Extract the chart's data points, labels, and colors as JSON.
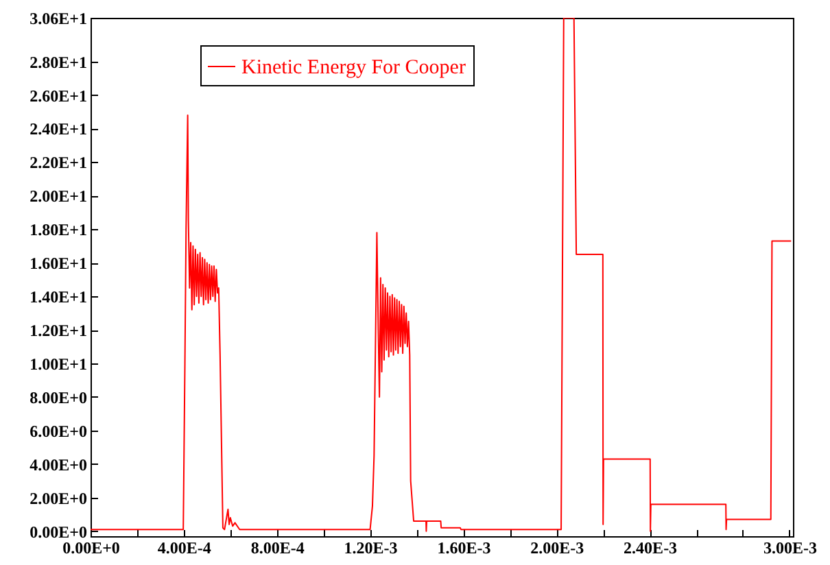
{
  "chart_data": {
    "type": "line",
    "x": [
      0,
      0.0002,
      0.000398,
      0.000405,
      0.00041,
      0.000417,
      0.00042,
      0.000425,
      0.00043,
      0.000435,
      0.00044,
      0.000445,
      0.00045,
      0.000455,
      0.00046,
      0.000465,
      0.00047,
      0.000475,
      0.00048,
      0.000485,
      0.00049,
      0.000495,
      0.0005,
      0.000505,
      0.00051,
      0.000515,
      0.00052,
      0.000525,
      0.00053,
      0.000535,
      0.00054,
      0.000545,
      0.00055,
      0.000556,
      0.000568,
      0.000575,
      0.00059,
      0.000595,
      0.0006,
      0.00061,
      0.00062,
      0.00064,
      0.001,
      0.0012,
      0.00121,
      0.001217,
      0.001229,
      0.001235,
      0.00124,
      0.001245,
      0.00125,
      0.001255,
      0.00126,
      0.001265,
      0.00127,
      0.001275,
      0.00128,
      0.001285,
      0.00129,
      0.001295,
      0.0013,
      0.001305,
      0.00131,
      0.001315,
      0.00132,
      0.001325,
      0.00133,
      0.001335,
      0.00134,
      0.001345,
      0.00135,
      0.001355,
      0.00136,
      0.001365,
      0.00137,
      0.001374,
      0.001387,
      0.001393,
      0.00144,
      0.001441,
      0.001443,
      0.001503,
      0.001505,
      0.001587,
      0.00159,
      0.00202,
      0.002031,
      0.002035,
      0.002075,
      0.002085,
      0.002199,
      0.0022,
      0.002202,
      0.002402,
      0.002403,
      0.002405,
      0.002727,
      0.002728,
      0.00273,
      0.00292,
      0.002925,
      0.003007
    ],
    "series": [
      {
        "name": "Kinetic Energy For Cooper",
        "color": "#ff0000",
        "values": [
          0.1,
          0.1,
          0.1,
          10,
          18,
          24.8,
          18.5,
          14.5,
          17.2,
          13.2,
          17,
          13.5,
          16.8,
          14,
          16.5,
          13.6,
          16.6,
          14,
          16.3,
          13.5,
          16.2,
          13.8,
          16,
          13.6,
          15.9,
          13.8,
          15.8,
          14,
          15.8,
          13.7,
          15.6,
          14.2,
          14.5,
          10.5,
          0.2,
          0.1,
          1.3,
          0.4,
          0.8,
          0.3,
          0.5,
          0.1,
          0.1,
          0.1,
          1.5,
          4.5,
          17.8,
          12,
          8,
          15.1,
          9.5,
          14.7,
          10.2,
          14.5,
          10.8,
          14.2,
          10.4,
          14,
          10.7,
          14.1,
          10.5,
          13.9,
          10.8,
          13.8,
          10.6,
          13.7,
          11,
          13.5,
          10.6,
          13.4,
          11.2,
          13,
          11,
          12.5,
          10.5,
          3,
          0.6,
          0.6,
          0.6,
          0,
          0.6,
          0.6,
          0.2,
          0.2,
          0.1,
          0.1,
          30.6,
          30.6,
          30.6,
          16.5,
          16.5,
          0.4,
          4.3,
          4.3,
          0,
          1.6,
          1.6,
          0.1,
          0.7,
          0.7,
          17.3,
          17.3
        ]
      }
    ],
    "xlim": [
      0,
      0.003015
    ],
    "ylim": [
      -0.3,
      30.6
    ],
    "xticks": [
      {
        "value": 0,
        "label": "0.00E+0"
      },
      {
        "value": 0.0002,
        "label": null
      },
      {
        "value": 0.0004,
        "label": "4.00E-4"
      },
      {
        "value": 0.0006,
        "label": null
      },
      {
        "value": 0.0008,
        "label": "8.00E-4"
      },
      {
        "value": 0.001,
        "label": null
      },
      {
        "value": 0.0012,
        "label": "1.20E-3"
      },
      {
        "value": 0.0014,
        "label": null
      },
      {
        "value": 0.0016,
        "label": "1.60E-3"
      },
      {
        "value": 0.0018,
        "label": null
      },
      {
        "value": 0.002,
        "label": "2.00E-3"
      },
      {
        "value": 0.0022,
        "label": null
      },
      {
        "value": 0.0024,
        "label": "2.40E-3"
      },
      {
        "value": 0.0026,
        "label": null
      },
      {
        "value": 0.0028,
        "label": null
      },
      {
        "value": 0.003,
        "label": "3.00E-3"
      }
    ],
    "yticks": [
      {
        "value": 0,
        "label": "0.00E+0"
      },
      {
        "value": 2,
        "label": "2.00E+0"
      },
      {
        "value": 4,
        "label": "4.00E+0"
      },
      {
        "value": 6,
        "label": "6.00E+0"
      },
      {
        "value": 8,
        "label": "8.00E+0"
      },
      {
        "value": 10,
        "label": "1.00E+1"
      },
      {
        "value": 12,
        "label": "1.20E+1"
      },
      {
        "value": 14,
        "label": "1.40E+1"
      },
      {
        "value": 16,
        "label": "1.60E+1"
      },
      {
        "value": 18,
        "label": "1.80E+1"
      },
      {
        "value": 20,
        "label": "2.00E+1"
      },
      {
        "value": 22,
        "label": "2.20E+1"
      },
      {
        "value": 24,
        "label": "2.40E+1"
      },
      {
        "value": 26,
        "label": "2.60E+1"
      },
      {
        "value": 28,
        "label": "2.80E+1"
      },
      {
        "value": 30.6,
        "label": "3.06E+1"
      }
    ],
    "legend": "top left",
    "grid": false
  }
}
